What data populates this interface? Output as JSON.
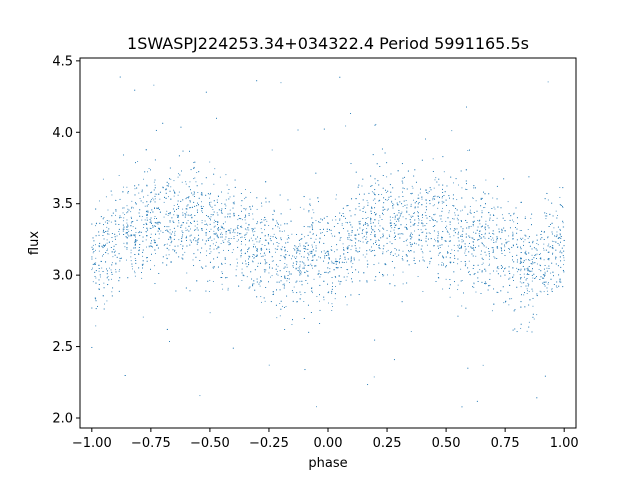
{
  "chart_data": {
    "type": "scatter",
    "title": "1SWASPJ224253.34+034322.4 Period 5991165.5s",
    "xlabel": "phase",
    "ylabel": "flux",
    "xlim": [
      -1.05,
      1.05
    ],
    "ylim": [
      1.93,
      4.52
    ],
    "x_ticks": [
      -1.0,
      -0.75,
      -0.5,
      -0.25,
      0.0,
      0.25,
      0.5,
      0.75,
      1.0
    ],
    "x_tick_labels": [
      "−1.00",
      "−0.75",
      "−0.50",
      "−0.25",
      "0.00",
      "0.25",
      "0.50",
      "0.75",
      "1.00"
    ],
    "y_ticks": [
      2.0,
      2.5,
      3.0,
      3.5,
      4.0,
      4.5
    ],
    "y_tick_labels": [
      "2.0",
      "2.5",
      "3.0",
      "3.5",
      "4.0",
      "4.5"
    ],
    "grid": false,
    "legend": "none",
    "marker_color": "#1f77b4",
    "series": [
      {
        "x_range": [
          -1.0,
          1.0
        ],
        "profile_phase": [
          0.0,
          0.05,
          0.1,
          0.15,
          0.2,
          0.25,
          0.3,
          0.35,
          0.4,
          0.45,
          0.5,
          0.55,
          0.6,
          0.65,
          0.7,
          0.75,
          0.8,
          0.85,
          0.9,
          0.95,
          1.0
        ],
        "profile_flux": [
          3.05,
          3.15,
          3.25,
          3.32,
          3.35,
          3.38,
          3.35,
          3.38,
          3.4,
          3.38,
          3.32,
          3.3,
          3.28,
          3.26,
          3.22,
          3.18,
          3.12,
          3.05,
          3.1,
          3.18,
          3.2
        ],
        "scatter_sigma": 0.18,
        "outlier_range": [
          2.05,
          4.45
        ]
      }
    ]
  }
}
